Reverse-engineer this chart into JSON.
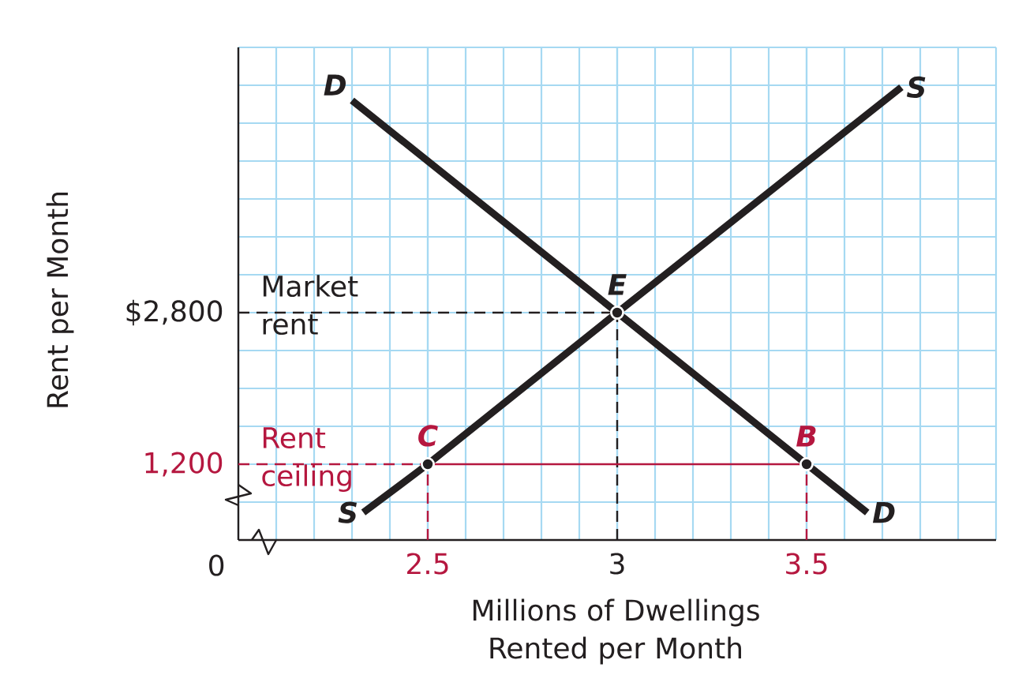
{
  "chart_data": {
    "type": "line",
    "xlabel": "Millions of Dwellings Rented per Month",
    "ylabel": "Rent per Month",
    "xlim": [
      2.0,
      4.0
    ],
    "ylim": [
      400,
      5600
    ],
    "xticks": [
      2.5,
      3,
      3.5
    ],
    "yticks": [
      {
        "value": 1200,
        "label": "1,200"
      },
      {
        "value": 2800,
        "label": "$2,800"
      }
    ],
    "grid": true,
    "series": [
      {
        "name": "D",
        "color": "#231f20",
        "x": [
          2.3,
          3,
          3.5,
          3.66
        ],
        "values": [
          5040,
          2800,
          1200,
          690
        ]
      },
      {
        "name": "S",
        "color": "#231f20",
        "x": [
          2.33,
          2.5,
          3,
          3.75
        ],
        "values": [
          690,
          1200,
          2800,
          5180
        ]
      },
      {
        "color": "#b5173f",
        "x": [
          2.5,
          3.5
        ],
        "values": [
          1200,
          1200
        ]
      },
      {
        "type": "scatter",
        "color": "#231f20",
        "marker": "circle",
        "x": [
          2.5,
          3,
          3.5
        ],
        "values": [
          1200,
          2800,
          1200
        ]
      }
    ],
    "ref_lines": [
      {
        "axis": "y",
        "value": 2800,
        "label": "Market rent",
        "color": "#231f20",
        "line_style": "dashed"
      },
      {
        "axis": "x",
        "value": 3,
        "color": "#231f20",
        "line_style": "dashed"
      },
      {
        "axis": "y",
        "value": 1200,
        "label": "Rent ceiling",
        "color": "#b5173f",
        "line_style": "dashed"
      },
      {
        "axis": "x",
        "value": 2.5,
        "color": "#b5173f",
        "line_style": "dashed"
      },
      {
        "axis": "x",
        "value": 3.5,
        "color": "#b5173f",
        "line_style": "dashed"
      }
    ],
    "annotations": [
      {
        "text": "E",
        "x": 3,
        "y": 2800
      },
      {
        "text": "C",
        "x": 2.5,
        "y": 1200
      },
      {
        "text": "B",
        "x": 3.5,
        "y": 1200
      },
      "0"
    ]
  }
}
